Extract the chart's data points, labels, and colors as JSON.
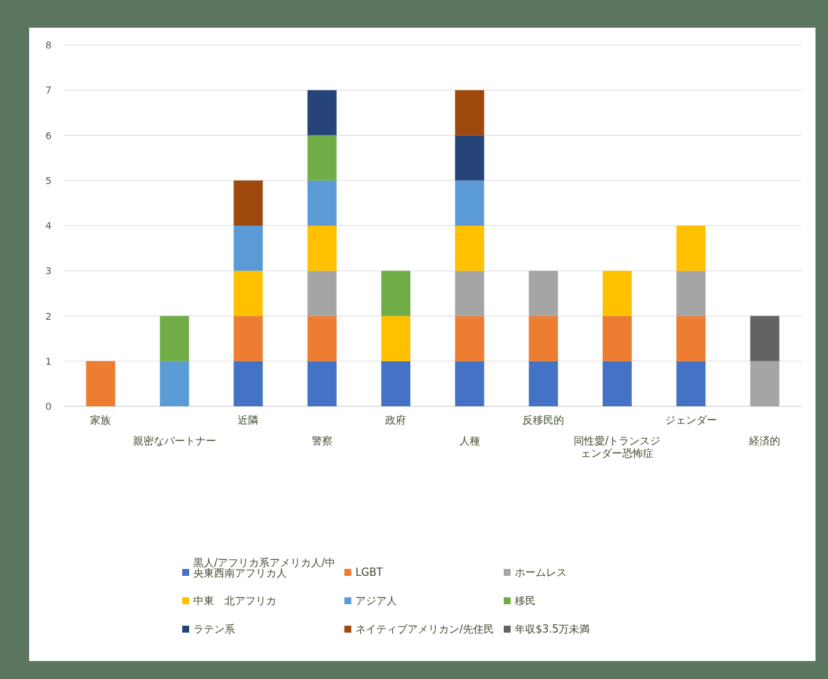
{
  "chart_data": {
    "type": "bar",
    "stacked": true,
    "categories": [
      "家族",
      "親密なパートナー",
      "近隣",
      "警察",
      "政府",
      "人種",
      "反移民的",
      "同性愛/トランスジェンダー恐怖症",
      "ジェンダー",
      "経済的"
    ],
    "series": [
      {
        "name": "黒人/アフリカ系アメリカ人/中央東西南アフリカ人",
        "color": "#4472c4",
        "values": [
          null,
          null,
          1,
          1,
          1,
          1,
          1,
          1,
          1,
          null
        ]
      },
      {
        "name": "LGBT",
        "color": "#ed7d31",
        "values": [
          1,
          null,
          1,
          1,
          null,
          1,
          1,
          1,
          1,
          null
        ]
      },
      {
        "name": "ホームレス",
        "color": "#a5a5a5",
        "values": [
          null,
          null,
          null,
          1,
          null,
          1,
          1,
          null,
          1,
          1
        ]
      },
      {
        "name": "中東　北アフリカ",
        "color": "#ffc000",
        "values": [
          null,
          null,
          1,
          1,
          1,
          1,
          null,
          1,
          1,
          null
        ]
      },
      {
        "name": "アジア人",
        "color": "#5b9bd5",
        "values": [
          null,
          1,
          1,
          1,
          null,
          1,
          null,
          null,
          null,
          null
        ]
      },
      {
        "name": "移民",
        "color": "#70ad47",
        "values": [
          null,
          1,
          null,
          1,
          1,
          null,
          null,
          null,
          null,
          null
        ]
      },
      {
        "name": "ラテン系",
        "color": "#264478",
        "values": [
          null,
          null,
          null,
          1,
          null,
          1,
          null,
          null,
          null,
          null
        ]
      },
      {
        "name": "ネイティブアメリカン/先住民",
        "color": "#9e480e",
        "values": [
          null,
          null,
          1,
          null,
          null,
          1,
          null,
          null,
          null,
          null
        ]
      },
      {
        "name": "年収$3.5万未満",
        "color": "#636363",
        "values": [
          null,
          null,
          null,
          null,
          null,
          null,
          null,
          null,
          null,
          1
        ]
      }
    ],
    "ylim": [
      0,
      8
    ],
    "yticks": [
      0,
      1,
      2,
      3,
      4,
      5,
      6,
      7,
      8
    ],
    "grid": "y",
    "legend": "bottom"
  }
}
